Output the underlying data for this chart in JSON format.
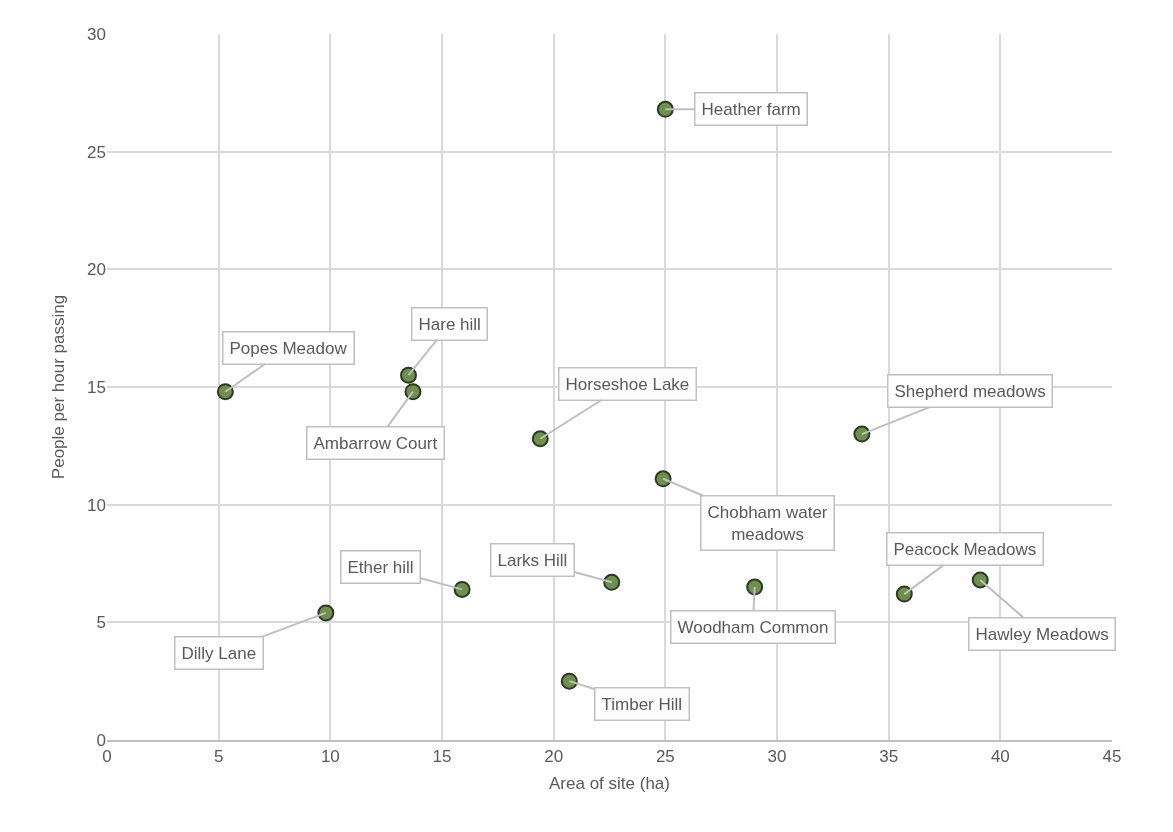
{
  "chart_data": {
    "type": "scatter",
    "xlabel": "Area of site (ha)",
    "ylabel": "People per hour passing",
    "xlim": [
      0,
      45
    ],
    "xticks": [
      0,
      5,
      10,
      15,
      20,
      25,
      30,
      35,
      40,
      45
    ],
    "ylim": [
      0,
      30
    ],
    "yticks": [
      0,
      5,
      10,
      15,
      20,
      25,
      30
    ],
    "grid": true,
    "marker": "circle",
    "series": [
      {
        "color": "#6f8f4e",
        "x": [
          25,
          5.3,
          13.5,
          13.7,
          19.4,
          33.8,
          24.9,
          15.9,
          22.6,
          29,
          35.7,
          39.1,
          9.8,
          20.7
        ],
        "values": [
          26.8,
          14.8,
          15.5,
          14.8,
          12.8,
          13,
          11.1,
          6.4,
          6.7,
          6.5,
          6.2,
          6.8,
          5.4,
          2.5
        ]
      }
    ],
    "annotations": [
      {
        "text": "Heather farm",
        "x": 25,
        "y": 26.8
      },
      {
        "text": "Popes Meadow",
        "x": 5.3,
        "y": 14.8
      },
      {
        "text": "Hare hill",
        "x": 13.5,
        "y": 15.5
      },
      {
        "text": "Ambarrow Court",
        "x": 13.7,
        "y": 14.8
      },
      {
        "text": "Horseshoe Lake",
        "x": 19.4,
        "y": 12.8
      },
      {
        "text": "Shepherd meadows",
        "x": 33.8,
        "y": 13
      },
      {
        "text": "Chobham water\nmeadows",
        "x": 24.9,
        "y": 11.1
      },
      {
        "text": "Ether hill",
        "x": 15.9,
        "y": 6.4
      },
      {
        "text": "Larks Hill",
        "x": 22.6,
        "y": 6.7
      },
      {
        "text": "Woodham Common",
        "x": 29,
        "y": 6.5
      },
      {
        "text": "Peacock Meadows",
        "x": 35.7,
        "y": 6.2
      },
      {
        "text": "Hawley Meadows",
        "x": 39.1,
        "y": 6.8
      },
      {
        "text": "Dilly Lane",
        "x": 9.8,
        "y": 5.4
      },
      {
        "text": "Timber Hill",
        "x": 20.7,
        "y": 2.5
      }
    ]
  }
}
